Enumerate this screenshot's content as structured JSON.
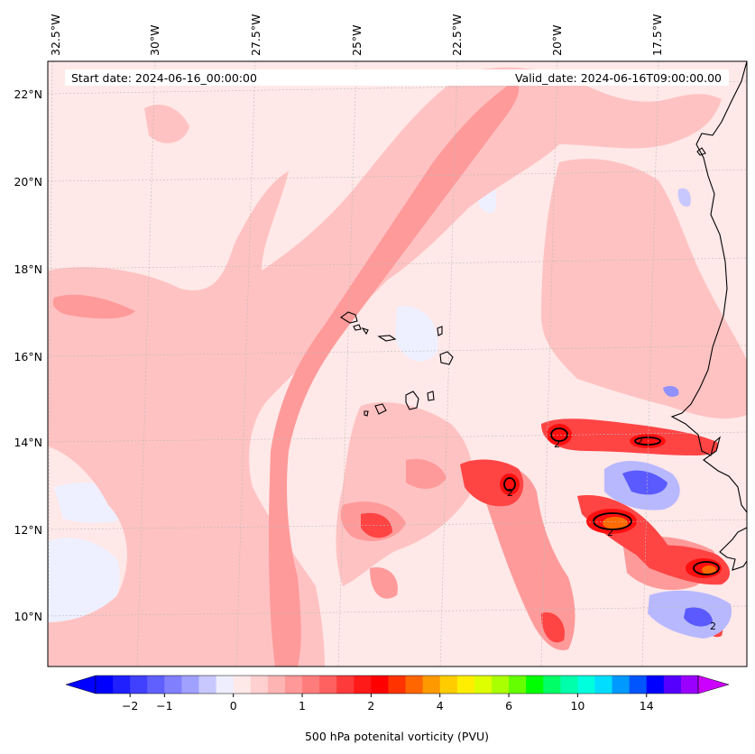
{
  "map": {
    "start_date": "Start date: 2024-06-16_00:00:00",
    "valid_date": "Valid_date: 2024-06-16T09:00:00.00",
    "lon_labels": [
      "32.5°W",
      "30°W",
      "27.5°W",
      "25°W",
      "22.5°W",
      "20°W",
      "17.5°W"
    ],
    "lat_labels": [
      "22°N",
      "20°N",
      "18°N",
      "16°N",
      "14°N",
      "12°N",
      "10°N"
    ],
    "contour_label": "2",
    "colors": {
      "pale": "#ffe8e8",
      "light": "#ffc2c2",
      "medium": "#ff9a9a",
      "strong": "#ff4444",
      "red": "#ff0f0f",
      "orange": "#ff6a00",
      "blue": "#5a5aff",
      "lightblue": "#eef0ff"
    }
  },
  "colorbar": {
    "label": "500 hPa potenital vorticity (PVU)",
    "ticks": [
      "−2",
      "−1",
      "0",
      "1",
      "2",
      "4",
      "6",
      "10",
      "14"
    ],
    "colors": [
      "#0000ff",
      "#2020ff",
      "#4040ff",
      "#6060ff",
      "#8080ff",
      "#a0a0ff",
      "#c8c8ff",
      "#eeeeff",
      "#ffe8e8",
      "#ffd0d0",
      "#ffb4b4",
      "#ff9898",
      "#ff7c7c",
      "#ff6060",
      "#ff3a3a",
      "#ff1a1a",
      "#ff0000",
      "#ff3300",
      "#ff6600",
      "#ff9900",
      "#ffcc00",
      "#ffee00",
      "#ddff00",
      "#aaff00",
      "#66ff00",
      "#00ff00",
      "#00ff66",
      "#00ffaa",
      "#00ffdd",
      "#00ddff",
      "#0099ff",
      "#0055ff",
      "#0000ff",
      "#5500ff",
      "#9900ff"
    ],
    "under_color": "#0000ff",
    "over_color": "#cc00ff"
  }
}
